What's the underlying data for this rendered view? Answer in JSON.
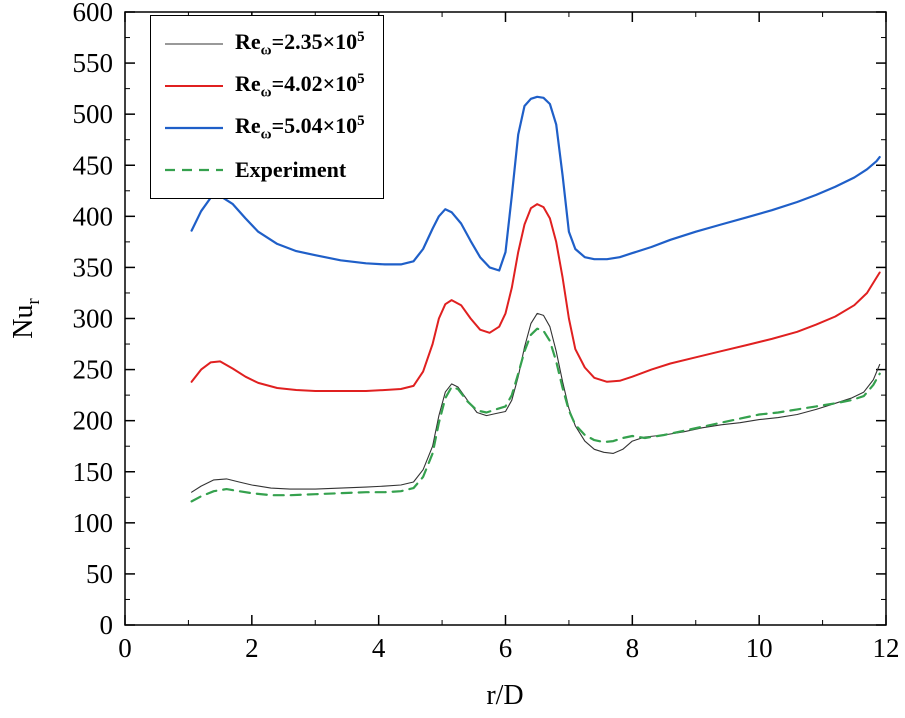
{
  "chart_data": {
    "type": "line",
    "title": "",
    "xlabel": "r/D",
    "ylabel_parts": [
      {
        "t": "Nu"
      },
      {
        "t": "r",
        "style": "sub"
      }
    ],
    "xlim": [
      0,
      12
    ],
    "ylim": [
      0,
      600
    ],
    "xticks": [
      0,
      2,
      4,
      6,
      8,
      10,
      12
    ],
    "yticks": [
      0,
      50,
      100,
      150,
      200,
      250,
      300,
      350,
      400,
      450,
      500,
      550,
      600
    ],
    "x_minor_step": 1,
    "y_minor_step": 25,
    "grid": false,
    "legend_position": "top-left",
    "series": [
      {
        "key": "re235",
        "name": "Re_omega=2.35x10^5",
        "label_parts": [
          {
            "t": "Re"
          },
          {
            "t": "ω",
            "style": "sub"
          },
          {
            "t": "=2.35×10"
          },
          {
            "t": "5",
            "style": "sup"
          }
        ],
        "color": "#333333",
        "line_width": 1.1,
        "dash": null,
        "x": [
          1.05,
          1.2,
          1.4,
          1.6,
          1.8,
          2.0,
          2.3,
          2.6,
          3.0,
          3.4,
          3.8,
          4.1,
          4.35,
          4.55,
          4.7,
          4.85,
          4.95,
          5.05,
          5.15,
          5.25,
          5.4,
          5.55,
          5.7,
          5.85,
          6.0,
          6.1,
          6.2,
          6.3,
          6.4,
          6.5,
          6.6,
          6.7,
          6.8,
          6.9,
          7.0,
          7.1,
          7.25,
          7.4,
          7.55,
          7.7,
          7.85,
          8.0,
          8.2,
          8.5,
          8.8,
          9.1,
          9.4,
          9.7,
          10.0,
          10.3,
          10.6,
          10.9,
          11.2,
          11.45,
          11.65,
          11.8,
          11.9
        ],
        "y": [
          130,
          136,
          142,
          143,
          140,
          137,
          134,
          133,
          133,
          134,
          135,
          136,
          137,
          140,
          152,
          175,
          205,
          228,
          236,
          233,
          220,
          208,
          205,
          207,
          209,
          220,
          243,
          272,
          295,
          305,
          303,
          292,
          268,
          238,
          212,
          195,
          180,
          172,
          169,
          168,
          172,
          180,
          184,
          186,
          189,
          193,
          196,
          198,
          201,
          203,
          206,
          211,
          217,
          222,
          228,
          240,
          255
        ]
      },
      {
        "key": "re402",
        "name": "Re_omega=4.02x10^5",
        "label_parts": [
          {
            "t": "Re"
          },
          {
            "t": "ω",
            "style": "sub"
          },
          {
            "t": "=4.02×10"
          },
          {
            "t": "5",
            "style": "sup"
          }
        ],
        "color": "#e02020",
        "line_width": 2.0,
        "dash": null,
        "x": [
          1.05,
          1.2,
          1.35,
          1.5,
          1.7,
          1.9,
          2.1,
          2.4,
          2.7,
          3.0,
          3.4,
          3.8,
          4.1,
          4.35,
          4.55,
          4.7,
          4.85,
          4.95,
          5.05,
          5.15,
          5.3,
          5.45,
          5.6,
          5.75,
          5.9,
          6.0,
          6.1,
          6.2,
          6.3,
          6.4,
          6.5,
          6.6,
          6.7,
          6.8,
          6.9,
          7.0,
          7.1,
          7.25,
          7.4,
          7.6,
          7.8,
          8.0,
          8.3,
          8.6,
          9.0,
          9.4,
          9.8,
          10.2,
          10.6,
          10.9,
          11.2,
          11.5,
          11.7,
          11.85,
          11.9
        ],
        "y": [
          238,
          250,
          257,
          258,
          251,
          243,
          237,
          232,
          230,
          229,
          229,
          229,
          230,
          231,
          234,
          248,
          275,
          300,
          314,
          318,
          313,
          300,
          289,
          286,
          292,
          305,
          330,
          365,
          392,
          408,
          412,
          409,
          398,
          375,
          340,
          300,
          270,
          252,
          242,
          238,
          239,
          243,
          250,
          256,
          262,
          268,
          274,
          280,
          287,
          294,
          302,
          313,
          325,
          340,
          345
        ]
      },
      {
        "key": "re504",
        "name": "Re_omega=5.04x10^5",
        "label_parts": [
          {
            "t": "Re"
          },
          {
            "t": "ω",
            "style": "sub"
          },
          {
            "t": "=5.04×10"
          },
          {
            "t": "5",
            "style": "sup"
          }
        ],
        "color": "#1f5fc8",
        "line_width": 2.2,
        "dash": null,
        "x": [
          1.05,
          1.2,
          1.35,
          1.5,
          1.7,
          1.9,
          2.1,
          2.4,
          2.7,
          3.0,
          3.4,
          3.8,
          4.1,
          4.35,
          4.55,
          4.7,
          4.85,
          4.95,
          5.05,
          5.15,
          5.3,
          5.45,
          5.6,
          5.75,
          5.9,
          6.0,
          6.1,
          6.2,
          6.3,
          6.4,
          6.5,
          6.6,
          6.7,
          6.8,
          6.9,
          7.0,
          7.1,
          7.25,
          7.4,
          7.6,
          7.8,
          8.0,
          8.3,
          8.6,
          9.0,
          9.4,
          9.8,
          10.2,
          10.6,
          10.9,
          11.2,
          11.5,
          11.7,
          11.85,
          11.9
        ],
        "y": [
          386,
          405,
          418,
          420,
          412,
          398,
          385,
          373,
          366,
          362,
          357,
          354,
          353,
          353,
          356,
          368,
          388,
          400,
          407,
          404,
          393,
          376,
          360,
          350,
          347,
          365,
          420,
          480,
          508,
          515,
          517,
          516,
          510,
          490,
          440,
          385,
          368,
          360,
          358,
          358,
          360,
          364,
          370,
          377,
          385,
          392,
          399,
          406,
          414,
          421,
          429,
          438,
          446,
          454,
          458
        ]
      },
      {
        "key": "experiment",
        "name": "Experiment",
        "label_parts": [
          {
            "t": "Experiment"
          }
        ],
        "color": "#35a14e",
        "line_width": 2.2,
        "dash": "10 7",
        "x": [
          1.05,
          1.2,
          1.4,
          1.6,
          1.8,
          2.0,
          2.3,
          2.6,
          3.0,
          3.4,
          3.8,
          4.1,
          4.35,
          4.55,
          4.7,
          4.85,
          4.95,
          5.05,
          5.15,
          5.25,
          5.4,
          5.55,
          5.7,
          5.85,
          6.0,
          6.1,
          6.2,
          6.3,
          6.4,
          6.5,
          6.6,
          6.7,
          6.8,
          6.9,
          7.0,
          7.1,
          7.25,
          7.4,
          7.55,
          7.7,
          7.85,
          8.0,
          8.2,
          8.5,
          8.8,
          9.1,
          9.4,
          9.7,
          10.0,
          10.3,
          10.6,
          10.9,
          11.2,
          11.45,
          11.65,
          11.8,
          11.9
        ],
        "y": [
          121,
          126,
          131,
          133,
          131,
          129,
          127,
          127,
          128,
          129,
          130,
          130,
          131,
          134,
          145,
          168,
          198,
          222,
          233,
          231,
          219,
          210,
          208,
          211,
          214,
          225,
          246,
          268,
          284,
          290,
          288,
          278,
          258,
          232,
          210,
          196,
          186,
          181,
          179,
          180,
          183,
          185,
          183,
          186,
          190,
          194,
          198,
          202,
          206,
          208,
          211,
          214,
          217,
          220,
          224,
          235,
          246
        ]
      }
    ]
  }
}
